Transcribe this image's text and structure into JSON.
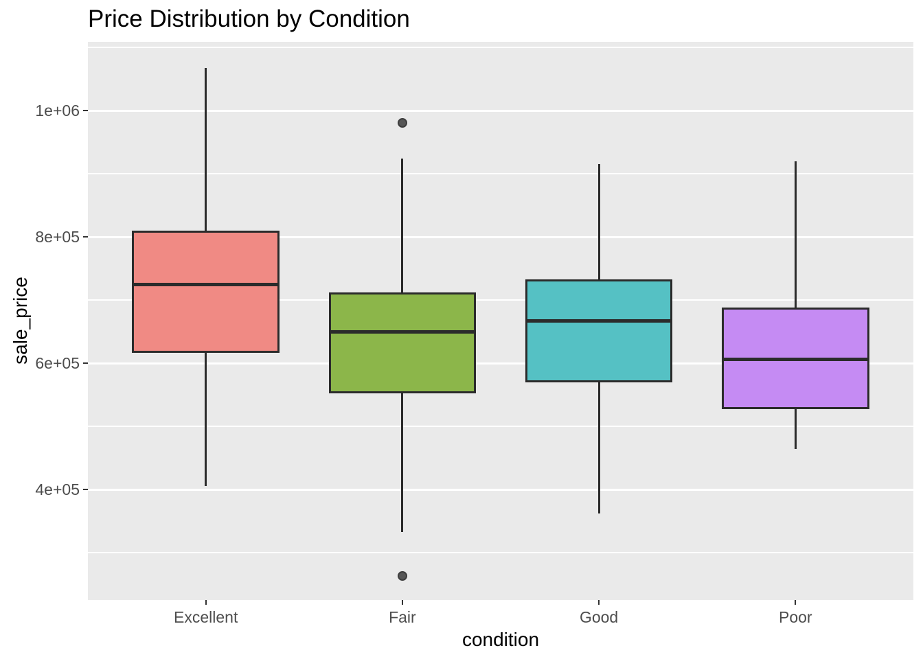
{
  "title": "Price Distribution by Condition",
  "chart_data": {
    "type": "boxplot",
    "title": "Price Distribution by Condition",
    "xlabel": "condition",
    "ylabel": "sale_price",
    "categories": [
      "Excellent",
      "Fair",
      "Good",
      "Poor"
    ],
    "series": [
      {
        "category": "Excellent",
        "color": "#F08A84",
        "whisker_low": 405000,
        "q1": 616000,
        "median": 724000,
        "q3": 810000,
        "whisker_high": 1067000,
        "outliers": []
      },
      {
        "category": "Fair",
        "color": "#8CB64A",
        "whisker_low": 333000,
        "q1": 552000,
        "median": 650000,
        "q3": 712000,
        "whisker_high": 924000,
        "outliers": [
          980000,
          263000
        ]
      },
      {
        "category": "Good",
        "color": "#55C1C4",
        "whisker_low": 362000,
        "q1": 570000,
        "median": 667000,
        "q3": 733000,
        "whisker_high": 915000,
        "outliers": []
      },
      {
        "category": "Poor",
        "color": "#C58BF3",
        "whisker_low": 464000,
        "q1": 527000,
        "median": 606000,
        "q3": 688000,
        "whisker_high": 920000,
        "outliers": []
      }
    ],
    "y_axis": {
      "range": [
        225000,
        1108700
      ],
      "ticks": [
        {
          "label": "4e+05",
          "value": 400000
        },
        {
          "label": "6e+05",
          "value": 600000
        },
        {
          "label": "8e+05",
          "value": 800000
        },
        {
          "label": "1e+06",
          "value": 1000000
        }
      ],
      "minor_ticks": [
        300000,
        500000,
        700000,
        900000,
        1100000
      ]
    },
    "layout_hints": {
      "grid": "on",
      "legend": "none",
      "box_width_fraction": 0.75
    },
    "style": {
      "panel_bg": "#EAEAEA",
      "grid_major_color": "#FFFFFF",
      "grid_minor_color": "#FFFFFF",
      "box_border_color": "#2B2B2B",
      "median_color": "#2B2B2B",
      "whisker_color": "#2B2B2B",
      "outlier_fill": "#575757",
      "outlier_border": "#3D3D3D",
      "axis_tick_color": "#333333",
      "tick_label_color": "#4D4D4D",
      "title_color": "#000000",
      "axis_title_color": "#000000"
    }
  }
}
